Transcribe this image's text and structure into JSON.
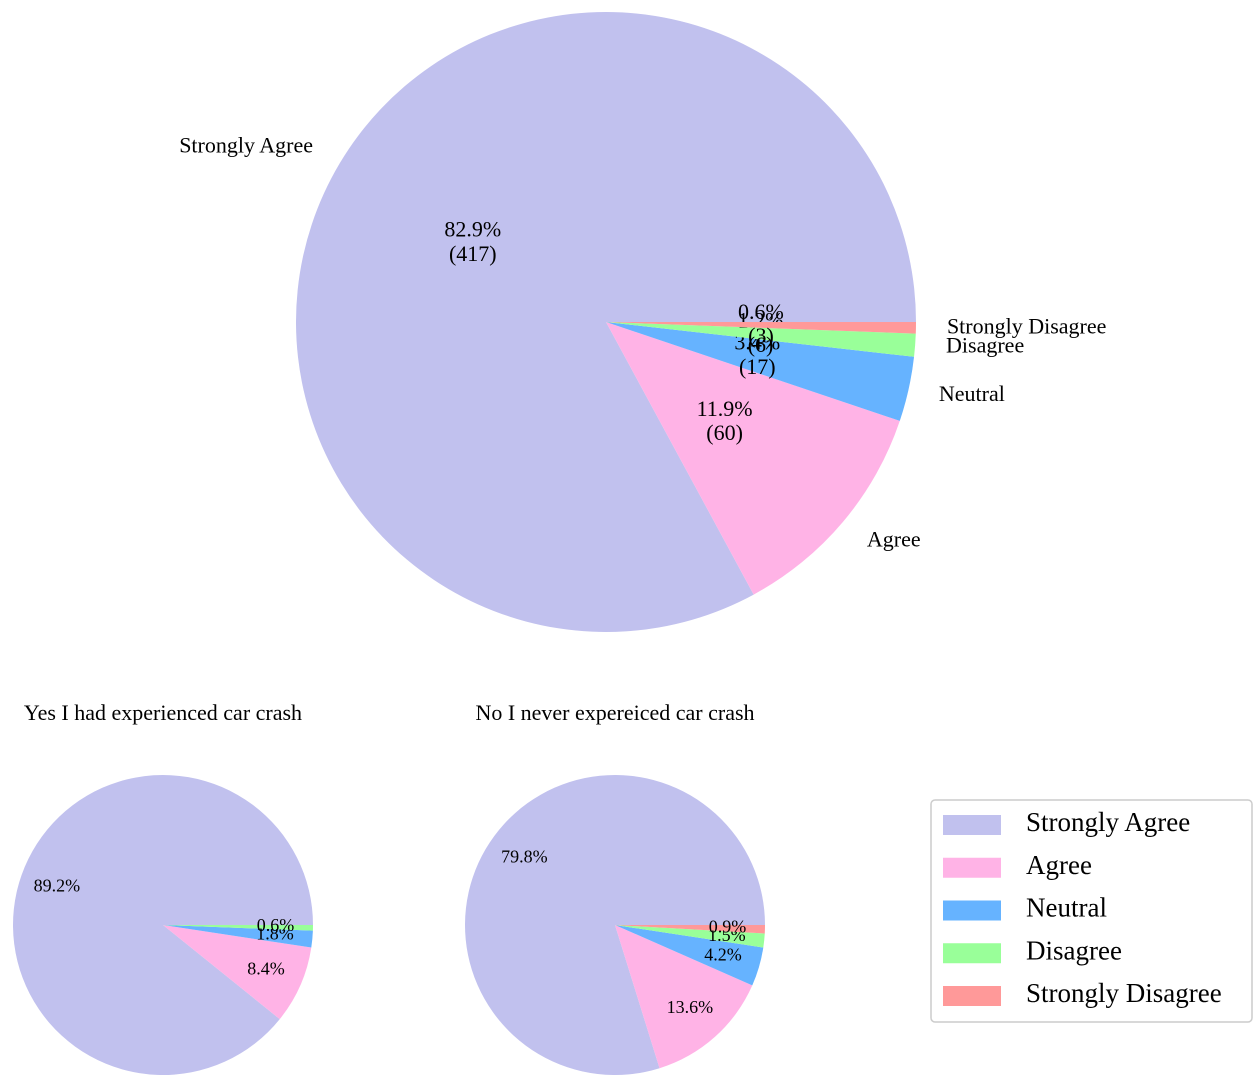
{
  "chart_data": [
    {
      "type": "pie",
      "outer_labels": true,
      "categories": [
        "Strongly Agree",
        "Agree",
        "Neutral",
        "Disagree",
        "Strongly Disagree"
      ],
      "values": [
        417,
        60,
        17,
        6,
        3
      ],
      "value_labels": [
        "82.9%\n(417)",
        "11.9%\n(60)",
        "3.4%\n(17)",
        "1.2%\n(6)",
        "0.6%\n(3)"
      ],
      "colors": [
        "#c1c1ee",
        "#ffb3e6",
        "#66b3ff",
        "#99ff99",
        "#ff9999"
      ]
    },
    {
      "type": "pie",
      "title": "Yes I had experienced car crash",
      "categories": [
        "Strongly Agree",
        "Agree",
        "Neutral",
        "Disagree"
      ],
      "values": [
        89.2,
        8.4,
        1.8,
        0.6
      ],
      "value_labels": [
        "89.2%",
        "8.4%",
        "1.8%",
        "0.6%"
      ],
      "colors": [
        "#c1c1ee",
        "#ffb3e6",
        "#66b3ff",
        "#99ff99"
      ]
    },
    {
      "type": "pie",
      "title": "No I never expereiced car crash",
      "categories": [
        "Strongly Agree",
        "Agree",
        "Neutral",
        "Disagree",
        "Strongly Disagree"
      ],
      "values": [
        79.8,
        13.6,
        4.2,
        1.5,
        0.9
      ],
      "value_labels": [
        "79.8%",
        "13.6%",
        "4.2%",
        "1.5%",
        "0.9%"
      ],
      "colors": [
        "#c1c1ee",
        "#ffb3e6",
        "#66b3ff",
        "#99ff99",
        "#ff9999"
      ]
    }
  ]
}
